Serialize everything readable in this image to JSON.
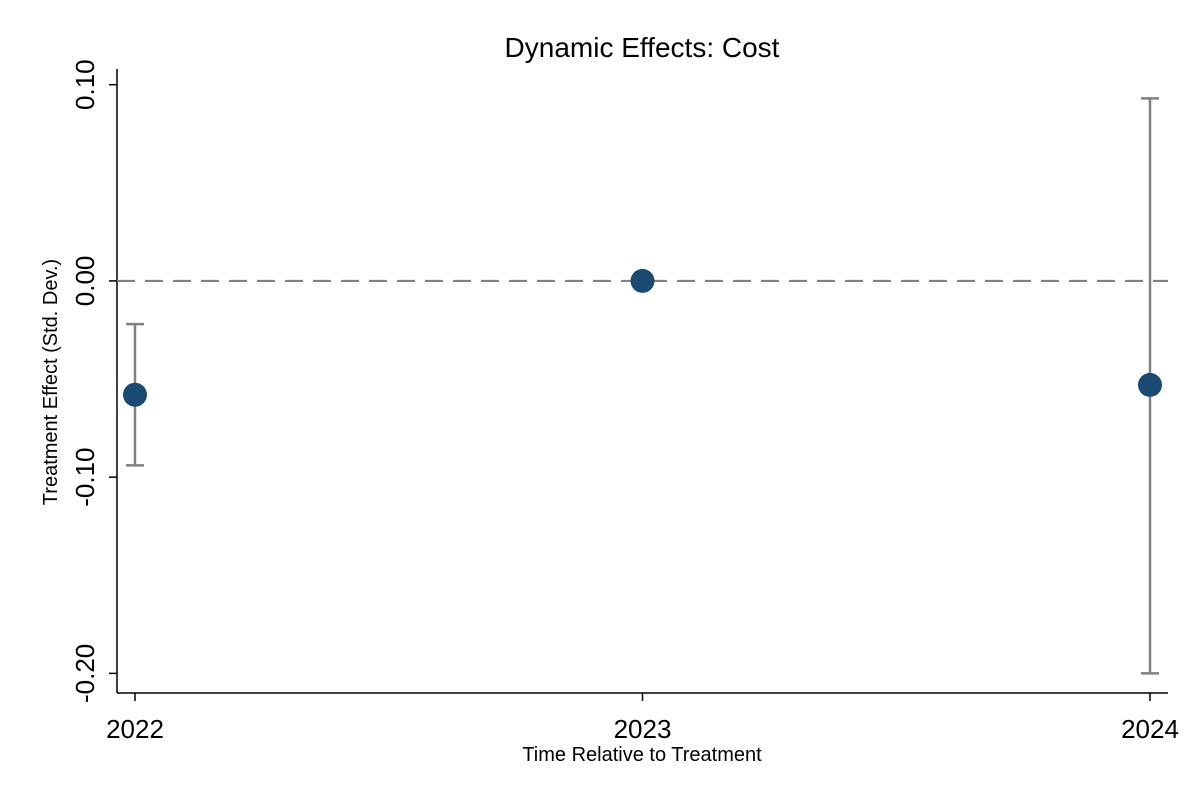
{
  "chart_data": {
    "type": "scatter",
    "title": "Dynamic Effects: Cost",
    "xlabel": "Time Relative to Treatment",
    "ylabel": "Treatment Effect (Std. Dev.)",
    "x": [
      "2022",
      "2023",
      "2024"
    ],
    "values": [
      -0.058,
      0.0,
      -0.053
    ],
    "ci_lower": [
      -0.094,
      null,
      -0.2
    ],
    "ci_upper": [
      -0.022,
      null,
      0.093
    ],
    "ylim": [
      -0.21,
      0.108
    ],
    "yticks": [
      0.1,
      0.0,
      -0.1,
      -0.2
    ],
    "ytick_labels": [
      "0.10",
      "0.00",
      "-0.10",
      "-0.20"
    ],
    "reference_line": 0.0,
    "grid": false,
    "colors": {
      "point": "#1a4a72",
      "errorbar": "#808080",
      "reference_line": "#808080",
      "axis": "#000000"
    }
  }
}
